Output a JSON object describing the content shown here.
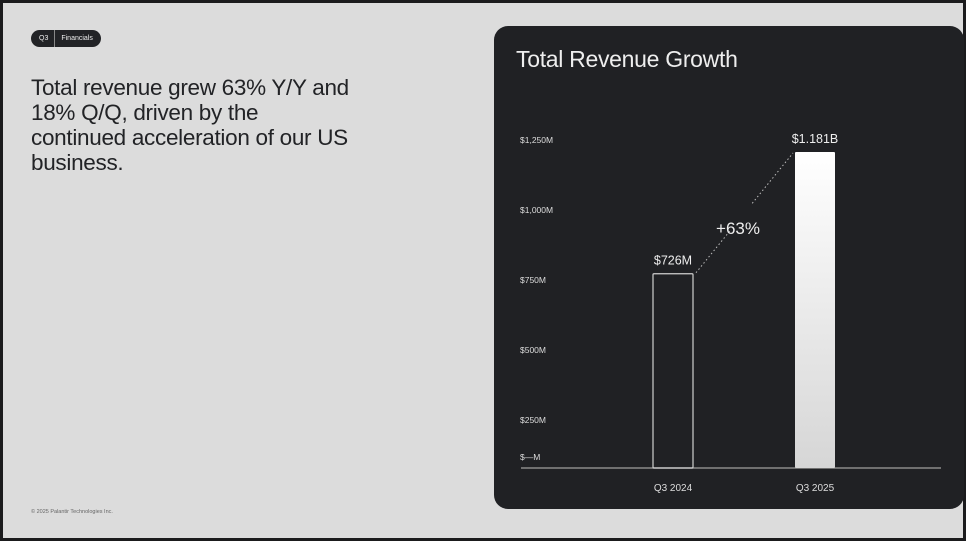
{
  "tag": {
    "section": "Q3",
    "topic": "Financials"
  },
  "headline": "Total revenue grew 63% Y/Y and 18% Q/Q, driven by the continued acceleration of our US business.",
  "footer": "© 2025 Palantir Technologies Inc.",
  "colors": {
    "slide_bg": "#dcdcdc",
    "panel_bg": "#202124",
    "bar_outline": "#cfcfcf",
    "bar_fill": "#ffffff"
  },
  "chart_data": {
    "type": "bar",
    "title": "Total Revenue Growth",
    "categories": [
      "Q3 2024",
      "Q3 2025"
    ],
    "values": [
      726,
      1181
    ],
    "unit": "$M",
    "data_labels": [
      "$726M",
      "$1.181B"
    ],
    "annotation": "+63%",
    "y_ticks": [
      0,
      250,
      500,
      750,
      1000,
      1250
    ],
    "y_tick_labels": [
      "$—M",
      "$250M",
      "$500M",
      "$750M",
      "$1,000M",
      "$1,250M"
    ],
    "ylim": [
      0,
      1250
    ],
    "grid": false,
    "legend": "none"
  }
}
